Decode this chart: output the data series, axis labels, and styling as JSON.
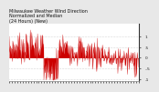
{
  "title": "Milwaukee Weather Wind Direction\nNormalized and Median\n(24 Hours) (New)",
  "title_fontsize": 3.5,
  "background_color": "#e8e8e8",
  "plot_bg_color": "#ffffff",
  "line_color": "#cc0000",
  "fill_color": "#cc0000",
  "grid_color": "#aaaaaa",
  "ylim": [
    -1.1,
    1.6
  ],
  "yticks": [
    1.0,
    0.5,
    0.0,
    -0.5,
    -1.0
  ],
  "ytick_labels": [
    "1",
    ".5",
    "0",
    "-.5",
    "-1"
  ],
  "num_points": 288,
  "seed": 7
}
